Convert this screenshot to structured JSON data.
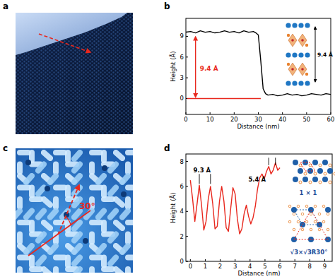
{
  "images": [
    {
      "label": "a"
    },
    {
      "label": "c",
      "annotation": "30°"
    }
  ],
  "chart_data": [
    {
      "label": "b",
      "type": "line",
      "color": "#000000",
      "x": [
        0,
        2,
        4,
        6,
        8,
        10,
        12,
        14,
        16,
        18,
        20,
        22,
        24,
        26,
        28,
        29,
        30,
        31,
        32,
        33,
        34,
        36,
        38,
        40,
        42,
        44,
        46,
        48,
        50,
        52,
        54,
        56,
        58,
        60
      ],
      "values": [
        9.6,
        9.7,
        9.5,
        9.8,
        9.6,
        9.7,
        9.5,
        9.6,
        9.8,
        9.6,
        9.7,
        9.5,
        9.8,
        9.6,
        9.7,
        9.5,
        9.2,
        5.5,
        1.4,
        0.7,
        0.5,
        0.6,
        0.4,
        0.5,
        0.7,
        0.5,
        0.6,
        0.4,
        0.5,
        0.7,
        0.6,
        0.5,
        0.7,
        0.6
      ],
      "xlim": [
        0,
        60
      ],
      "ylim": [
        -2.3,
        11.6
      ],
      "xticks": [
        0,
        10,
        20,
        30,
        40,
        50,
        60
      ],
      "yticks": [
        0,
        3,
        6,
        9
      ],
      "x_label": "Distance (nm)",
      "y_label": "Height (Å)",
      "annotations": [
        "9.4 Å"
      ],
      "inset_labels": [
        "9.4 Å"
      ]
    },
    {
      "label": "d",
      "type": "line",
      "color": "#e8281e",
      "x": [
        0,
        0.15,
        0.3,
        0.45,
        0.6,
        0.75,
        0.9,
        1.05,
        1.2,
        1.35,
        1.5,
        1.65,
        1.8,
        1.95,
        2.1,
        2.25,
        2.4,
        2.55,
        2.7,
        2.85,
        3.0,
        3.15,
        3.3,
        3.45,
        3.6,
        3.75,
        3.9,
        4.05,
        4.2,
        4.35,
        4.5,
        4.65,
        4.8,
        4.95,
        5.1,
        5.25,
        5.4,
        5.55,
        5.7,
        5.85,
        6.0
      ],
      "values": [
        6.5,
        5.0,
        3.2,
        4.6,
        6.1,
        4.5,
        2.5,
        3.2,
        5.0,
        6.0,
        4.6,
        2.6,
        2.8,
        4.8,
        6.0,
        4.8,
        2.7,
        2.4,
        4.2,
        5.9,
        5.4,
        3.4,
        2.2,
        2.6,
        3.8,
        4.5,
        3.6,
        3.0,
        3.5,
        4.4,
        5.8,
        6.7,
        7.0,
        6.6,
        7.2,
        7.6,
        7.0,
        7.3,
        7.9,
        7.3,
        7.5
      ],
      "xlim": [
        -0.3,
        9.5
      ],
      "ylim": [
        0,
        8.6
      ],
      "xticks": [
        0,
        1,
        2,
        3,
        4,
        5,
        6,
        7,
        8,
        9
      ],
      "yticks": [
        0,
        2,
        4,
        6,
        8
      ],
      "x_label": "Distance (nm)",
      "y_label": "Height (Å)",
      "annotations": [
        "9.3 Å",
        "5.4 Å"
      ],
      "inset_labels": [
        "1 × 1",
        "√3×√3R30°"
      ]
    }
  ]
}
